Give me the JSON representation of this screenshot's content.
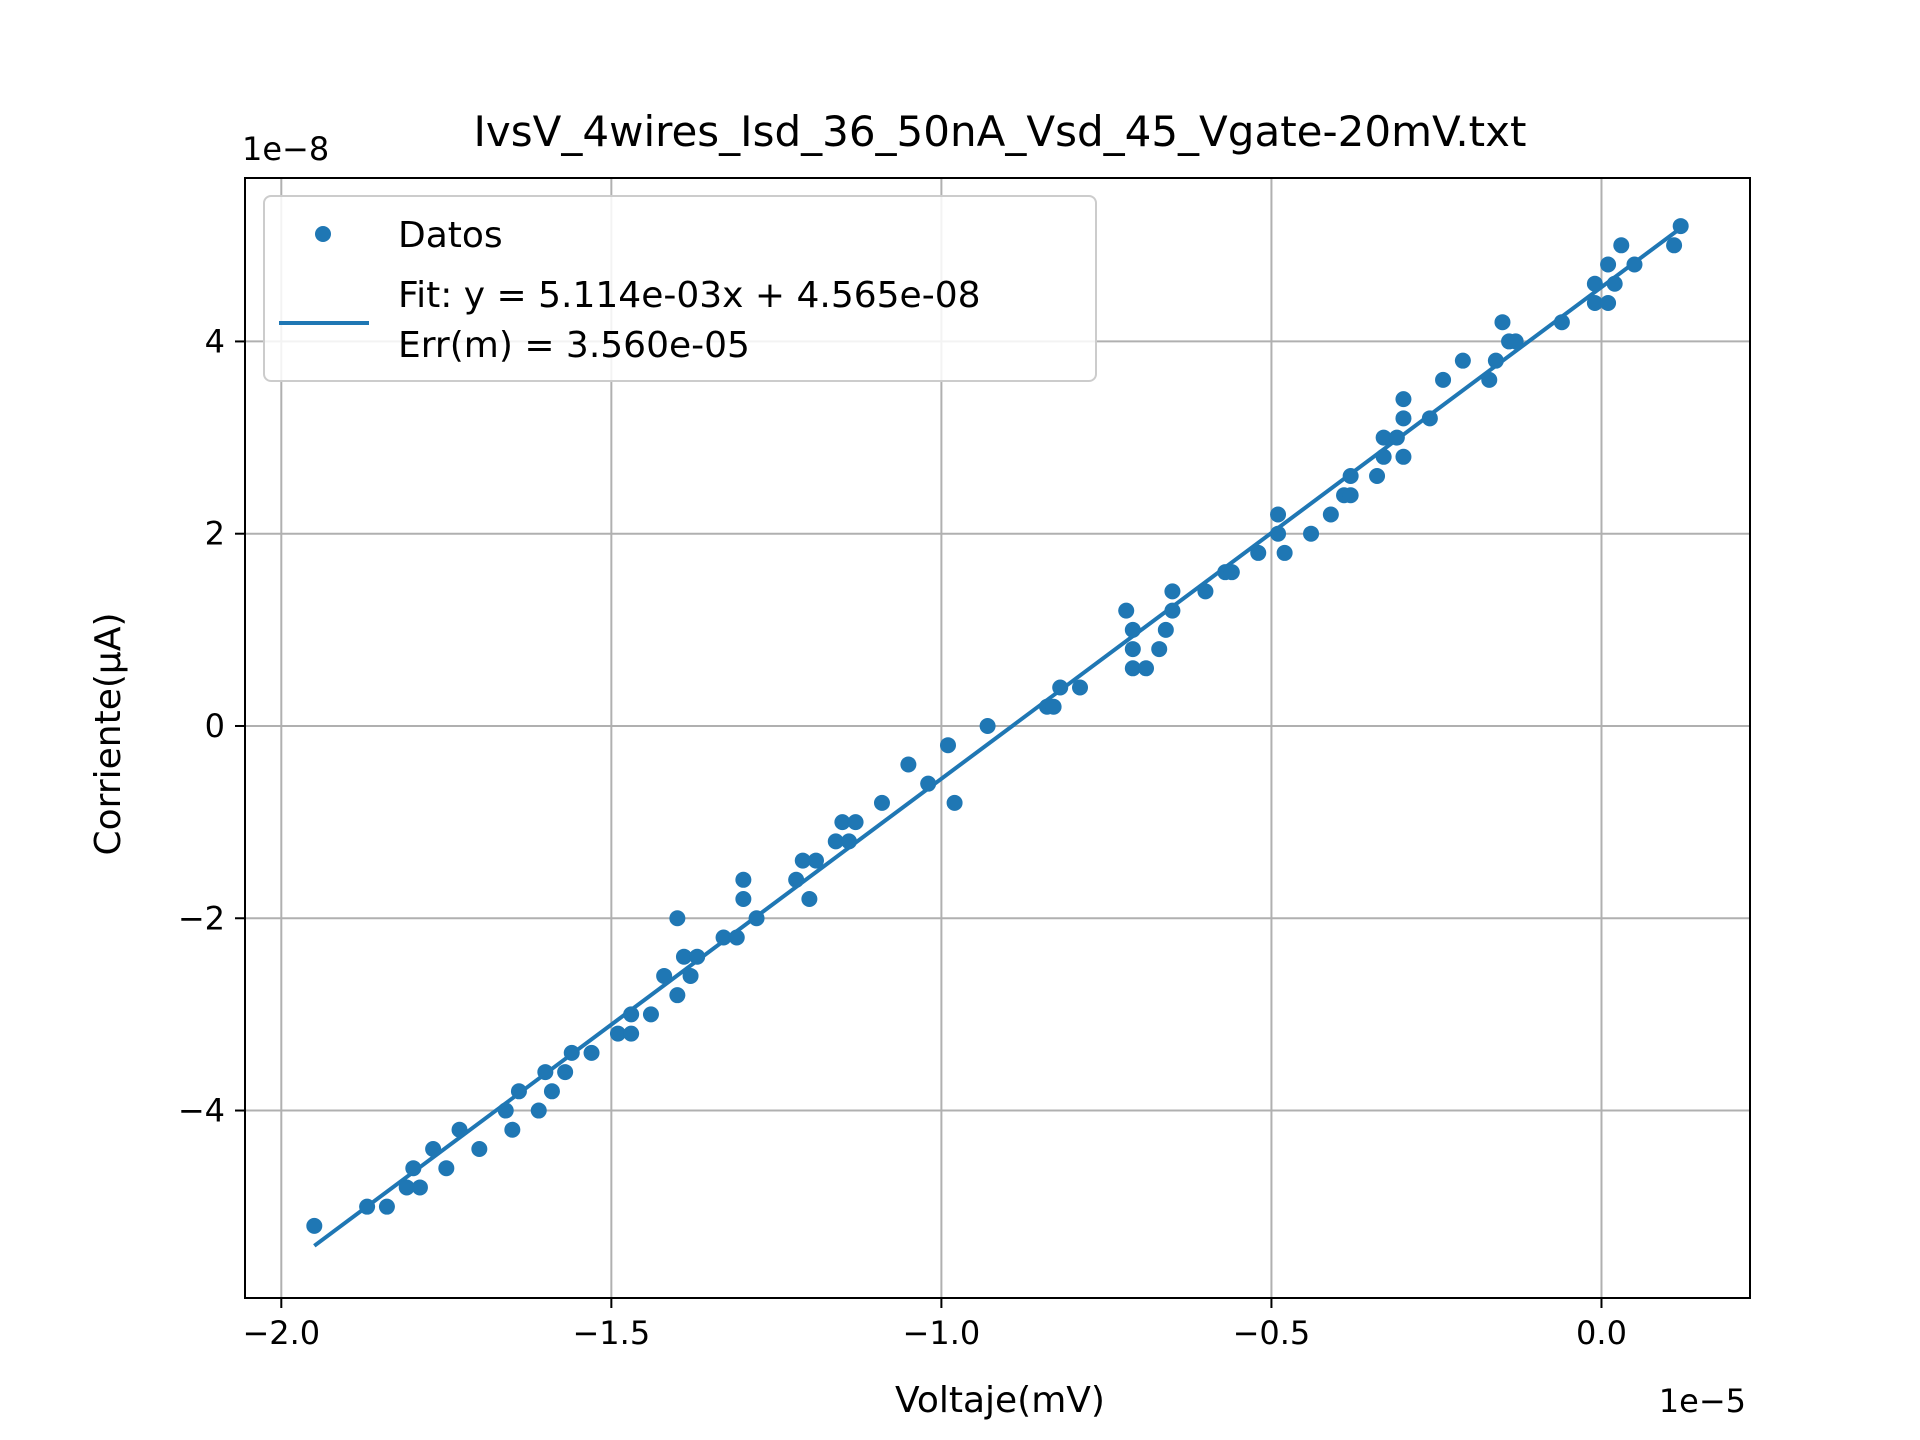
{
  "chart_data": {
    "type": "scatter",
    "title": "IvsV_4wires_Isd_36_50nA_Vsd_45_Vgate-20mV.txt",
    "xlabel": "Voltaje(mV)",
    "ylabel": "Corriente(μA)",
    "x_offset_label": "1e−5",
    "y_offset_label": "1e−8",
    "xlim": [
      -2.055,
      0.225
    ],
    "ylim": [
      -5.95,
      5.7
    ],
    "x_ticks": [
      -2.0,
      -1.5,
      -1.0,
      -0.5,
      0.0
    ],
    "x_tick_labels": [
      "−2.0",
      "−1.5",
      "−1.0",
      "−0.5",
      "0.0"
    ],
    "y_ticks": [
      -4,
      -2,
      0,
      2,
      4
    ],
    "y_tick_labels": [
      "−4",
      "−2",
      "0",
      "2",
      "4"
    ],
    "grid": true,
    "legend_position": "upper-left",
    "colors": {
      "series": "#1f77b4",
      "grid": "#b0b0b0",
      "legend_border": "#cccccc"
    },
    "series": [
      {
        "name": "Datos",
        "kind": "scatter",
        "points": [
          [
            -1.95,
            -5.2
          ],
          [
            -1.87,
            -5.0
          ],
          [
            -1.84,
            -5.0
          ],
          [
            -1.81,
            -4.8
          ],
          [
            -1.8,
            -4.6
          ],
          [
            -1.79,
            -4.8
          ],
          [
            -1.77,
            -4.4
          ],
          [
            -1.75,
            -4.6
          ],
          [
            -1.73,
            -4.2
          ],
          [
            -1.7,
            -4.4
          ],
          [
            -1.66,
            -4.0
          ],
          [
            -1.65,
            -4.2
          ],
          [
            -1.64,
            -3.8
          ],
          [
            -1.61,
            -4.0
          ],
          [
            -1.6,
            -3.6
          ],
          [
            -1.59,
            -3.8
          ],
          [
            -1.57,
            -3.6
          ],
          [
            -1.56,
            -3.4
          ],
          [
            -1.53,
            -3.4
          ],
          [
            -1.49,
            -3.2
          ],
          [
            -1.47,
            -3.2
          ],
          [
            -1.47,
            -3.0
          ],
          [
            -1.44,
            -3.0
          ],
          [
            -1.42,
            -2.6
          ],
          [
            -1.4,
            -2.8
          ],
          [
            -1.4,
            -2.0
          ],
          [
            -1.39,
            -2.4
          ],
          [
            -1.38,
            -2.6
          ],
          [
            -1.37,
            -2.4
          ],
          [
            -1.33,
            -2.2
          ],
          [
            -1.31,
            -2.2
          ],
          [
            -1.3,
            -1.8
          ],
          [
            -1.3,
            -1.6
          ],
          [
            -1.28,
            -2.0
          ],
          [
            -1.22,
            -1.6
          ],
          [
            -1.21,
            -1.4
          ],
          [
            -1.2,
            -1.8
          ],
          [
            -1.19,
            -1.4
          ],
          [
            -1.16,
            -1.2
          ],
          [
            -1.15,
            -1.0
          ],
          [
            -1.14,
            -1.2
          ],
          [
            -1.13,
            -1.0
          ],
          [
            -1.09,
            -0.8
          ],
          [
            -1.05,
            -0.4
          ],
          [
            -1.02,
            -0.6
          ],
          [
            -0.99,
            -0.2
          ],
          [
            -0.98,
            -0.8
          ],
          [
            -0.93,
            0.0
          ],
          [
            -0.84,
            0.2
          ],
          [
            -0.83,
            0.2
          ],
          [
            -0.82,
            0.4
          ],
          [
            -0.79,
            0.4
          ],
          [
            -0.72,
            1.2
          ],
          [
            -0.71,
            1.0
          ],
          [
            -0.71,
            0.8
          ],
          [
            -0.71,
            0.6
          ],
          [
            -0.69,
            0.6
          ],
          [
            -0.67,
            0.8
          ],
          [
            -0.66,
            1.0
          ],
          [
            -0.65,
            1.2
          ],
          [
            -0.65,
            1.4
          ],
          [
            -0.6,
            1.4
          ],
          [
            -0.57,
            1.6
          ],
          [
            -0.56,
            1.6
          ],
          [
            -0.52,
            1.8
          ],
          [
            -0.49,
            2.0
          ],
          [
            -0.49,
            2.2
          ],
          [
            -0.48,
            1.8
          ],
          [
            -0.44,
            2.0
          ],
          [
            -0.41,
            2.2
          ],
          [
            -0.39,
            2.4
          ],
          [
            -0.38,
            2.4
          ],
          [
            -0.38,
            2.6
          ],
          [
            -0.34,
            2.6
          ],
          [
            -0.33,
            2.8
          ],
          [
            -0.33,
            3.0
          ],
          [
            -0.31,
            3.0
          ],
          [
            -0.3,
            2.8
          ],
          [
            -0.3,
            3.2
          ],
          [
            -0.3,
            3.4
          ],
          [
            -0.26,
            3.2
          ],
          [
            -0.24,
            3.6
          ],
          [
            -0.21,
            3.8
          ],
          [
            -0.17,
            3.6
          ],
          [
            -0.16,
            3.8
          ],
          [
            -0.15,
            4.2
          ],
          [
            -0.14,
            4.0
          ],
          [
            -0.13,
            4.0
          ],
          [
            -0.06,
            4.2
          ],
          [
            -0.01,
            4.4
          ],
          [
            -0.01,
            4.6
          ],
          [
            0.01,
            4.8
          ],
          [
            0.01,
            4.4
          ],
          [
            0.02,
            4.6
          ],
          [
            0.03,
            5.0
          ],
          [
            0.05,
            4.8
          ],
          [
            0.11,
            5.0
          ],
          [
            0.12,
            5.2
          ]
        ]
      },
      {
        "name": "Fit: y = 5.114e-03x + 4.565e-08\nErr(m) = 3.560e-05",
        "legend_lines": [
          "Fit: y = 5.114e-03x + 4.565e-08",
          "Err(m) = 3.560e-05"
        ],
        "kind": "line",
        "slope": 5.114,
        "intercept": 4.565,
        "x_range": [
          -1.95,
          0.12
        ]
      }
    ]
  }
}
